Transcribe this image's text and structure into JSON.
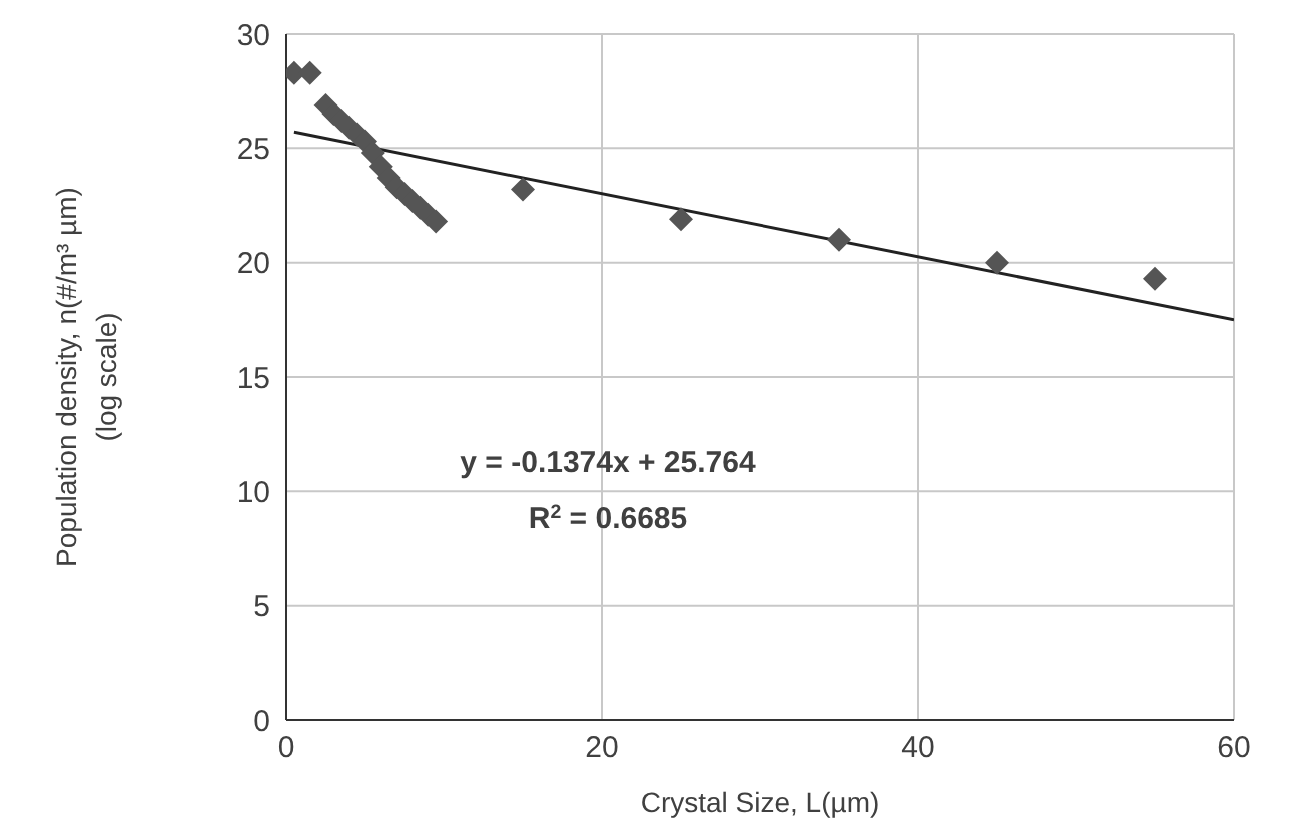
{
  "chart_data": {
    "type": "scatter",
    "xlabel": "Crystal Size, L(µm)",
    "ylabel": "Population density, n(#/m³ µm) (log scale)",
    "xlim": [
      0,
      60
    ],
    "xticks": [
      0,
      20,
      40,
      60
    ],
    "ylim": [
      0,
      30
    ],
    "yticks": [
      0,
      5,
      10,
      15,
      20,
      25,
      30
    ],
    "grid": true,
    "marker": "diamond",
    "annotations": [
      "y = -0.1374x + 25.764",
      "R$^{2}$ = 0.6685"
    ],
    "series": [
      {
        "color": "#555555",
        "x": [
          0.5,
          1.5,
          2.5,
          3,
          3.5,
          4,
          4.5,
          5,
          5.5,
          6,
          6.5,
          7,
          7.5,
          8,
          8.5,
          9,
          9.5,
          15,
          25,
          35,
          45,
          55
        ],
        "values": [
          28.3,
          28.3,
          26.9,
          26.5,
          26.2,
          25.9,
          25.6,
          25.3,
          24.8,
          24.2,
          23.7,
          23.3,
          23.0,
          22.7,
          22.4,
          22.1,
          21.8,
          23.2,
          21.9,
          21.0,
          20.0,
          19.3
        ]
      },
      {
        "type": "line",
        "color": "#222222",
        "marker": "none",
        "x": [
          0.5,
          60
        ],
        "values": [
          25.7,
          17.5
        ]
      }
    ]
  }
}
